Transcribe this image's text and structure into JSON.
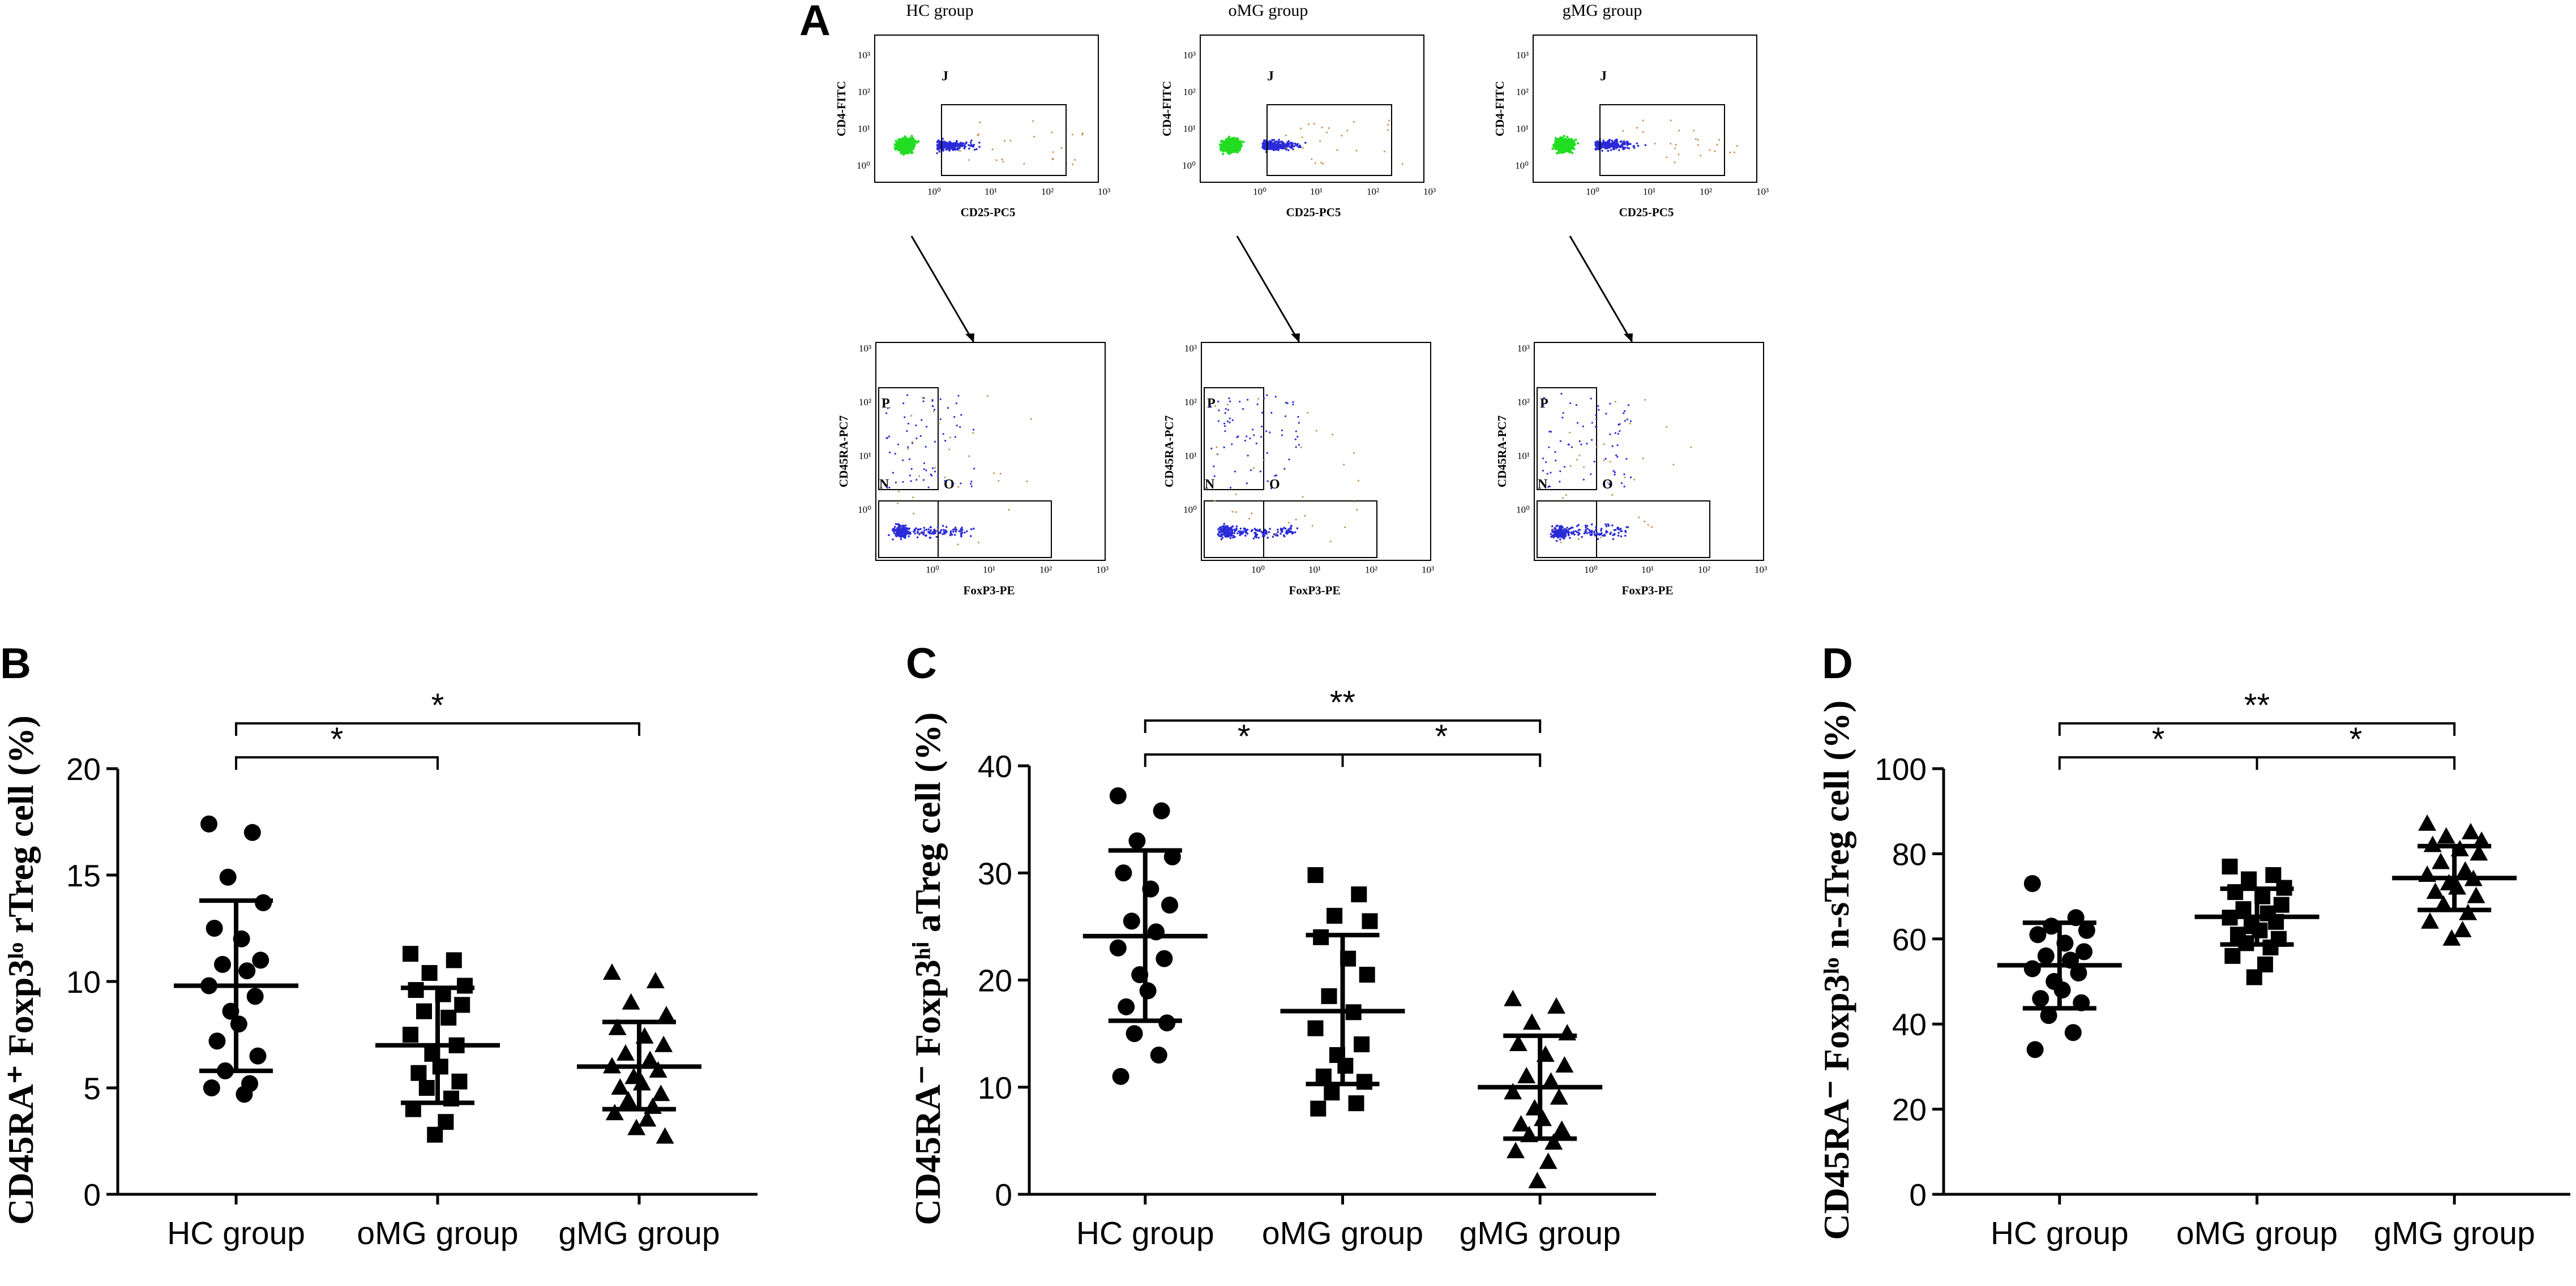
{
  "panel_a": {
    "letter": "A",
    "groups": [
      {
        "title": "HC group",
        "upper_x": "CD25-PC5",
        "upper_y": "CD4-FITC",
        "gate_j": "J",
        "lower_x": "FoxP3-PE",
        "lower_y": "CD45RA-PC7",
        "gate_p": "P",
        "gate_n": "N",
        "gate_o": "O"
      },
      {
        "title": "oMG group",
        "upper_x": "CD25-PC5",
        "upper_y": "CD4-FITC",
        "gate_j": "J",
        "lower_x": "FoxP3-PE",
        "lower_y": "CD45RA-PC7",
        "gate_p": "P",
        "gate_n": "N",
        "gate_o": "O"
      },
      {
        "title": "gMG group",
        "upper_x": "CD25-PC5",
        "upper_y": "CD4-FITC",
        "gate_j": "J",
        "lower_x": "FoxP3-PE",
        "lower_y": "CD45RA-PC7",
        "gate_p": "P",
        "gate_n": "N",
        "gate_o": "O"
      }
    ],
    "decade_labels": [
      "10⁰",
      "10¹",
      "10²",
      "10³"
    ],
    "colors": {
      "green": "#22dd22",
      "blue": "#2a2ad8",
      "orange": "#cc8844"
    }
  },
  "chart_data": [
    {
      "letter": "B",
      "type": "scatter",
      "ylabel": "CD45RA⁺ Foxp3ˡᵒ rTreg cell (%)",
      "ylim": [
        0,
        20
      ],
      "yticks": [
        "0",
        "5",
        "10",
        "15",
        "20"
      ],
      "categories": [
        "HC group",
        "oMG group",
        "gMG group"
      ],
      "markers": [
        "circle",
        "square",
        "triangle"
      ],
      "series": [
        {
          "name": "HC group",
          "mean": 9.8,
          "sd_low": 5.8,
          "sd_high": 13.8,
          "values": [
            17.4,
            17.0,
            14.9,
            13.7,
            12.5,
            12.0,
            11.0,
            10.8,
            10.5,
            9.8,
            9.3,
            8.6,
            8.0,
            7.2,
            6.5,
            5.8,
            5.2,
            5.0,
            4.7
          ]
        },
        {
          "name": "oMG group",
          "mean": 7.0,
          "sd_low": 4.3,
          "sd_high": 9.7,
          "values": [
            11.3,
            11.0,
            10.4,
            9.8,
            9.6,
            9.4,
            8.9,
            8.6,
            8.3,
            7.5,
            7.0,
            6.6,
            6.0,
            5.7,
            5.3,
            5.0,
            4.5,
            4.0,
            3.4,
            2.8
          ]
        },
        {
          "name": "gMG group",
          "mean": 6.0,
          "sd_low": 4.0,
          "sd_high": 8.1,
          "values": [
            10.4,
            10.0,
            9.0,
            8.4,
            7.8,
            7.4,
            7.0,
            6.6,
            6.3,
            6.0,
            5.8,
            5.5,
            5.2,
            5.0,
            4.7,
            4.4,
            4.1,
            3.8,
            3.5,
            3.1,
            2.7
          ]
        }
      ],
      "brackets": [
        {
          "from": 0,
          "to": 1,
          "label": "*"
        },
        {
          "from": 0,
          "to": 2,
          "label": "*"
        }
      ]
    },
    {
      "letter": "C",
      "type": "scatter",
      "ylabel": "CD45RA⁻ Foxp3ʰⁱ aTreg cell (%)",
      "ylim": [
        0,
        40
      ],
      "yticks": [
        "0",
        "10",
        "20",
        "30",
        "40"
      ],
      "categories": [
        "HC group",
        "oMG group",
        "gMG group"
      ],
      "markers": [
        "circle",
        "square",
        "triangle"
      ],
      "series": [
        {
          "name": "HC group",
          "mean": 24.1,
          "sd_low": 16.2,
          "sd_high": 32.1,
          "values": [
            37.2,
            35.8,
            33.0,
            31.5,
            30.0,
            28.5,
            27.0,
            25.5,
            24.5,
            23.0,
            22.0,
            20.5,
            19.0,
            17.5,
            16.0,
            15.0,
            13.0,
            11.0
          ]
        },
        {
          "name": "oMG group",
          "mean": 17.1,
          "sd_low": 10.3,
          "sd_high": 24.2,
          "values": [
            29.8,
            28.0,
            26.0,
            25.5,
            24.0,
            22.0,
            20.5,
            18.5,
            17.0,
            15.5,
            14.0,
            13.0,
            12.0,
            11.0,
            10.5,
            9.5,
            8.5,
            8.0
          ]
        },
        {
          "name": "gMG group",
          "mean": 10.0,
          "sd_low": 5.2,
          "sd_high": 14.8,
          "values": [
            18.2,
            17.5,
            16.0,
            15.0,
            14.0,
            13.0,
            12.0,
            11.0,
            10.5,
            9.5,
            9.0,
            8.0,
            7.0,
            6.5,
            6.0,
            5.5,
            4.8,
            4.0,
            3.0,
            1.2
          ]
        }
      ],
      "brackets": [
        {
          "from": 0,
          "to": 1,
          "label": "*"
        },
        {
          "from": 1,
          "to": 2,
          "label": "*"
        },
        {
          "from": 0,
          "to": 2,
          "label": "**"
        }
      ]
    },
    {
      "letter": "D",
      "type": "scatter",
      "ylabel": "CD45RA⁻ Foxp3ˡᵒ n-sTreg cell (%)",
      "ylim": [
        0,
        100
      ],
      "yticks": [
        "0",
        "20",
        "40",
        "60",
        "80",
        "100"
      ],
      "categories": [
        "HC group",
        "oMG group",
        "gMG group"
      ],
      "markers": [
        "circle",
        "square",
        "triangle"
      ],
      "series": [
        {
          "name": "HC group",
          "mean": 53.8,
          "sd_low": 43.7,
          "sd_high": 63.8,
          "values": [
            73.0,
            65.0,
            63.0,
            62.0,
            61.0,
            59.0,
            57.0,
            56.0,
            55.0,
            53.0,
            52.0,
            50.0,
            48.0,
            46.0,
            45.0,
            42.0,
            38.0,
            34.0
          ]
        },
        {
          "name": "oMG group",
          "mean": 65.2,
          "sd_low": 58.7,
          "sd_high": 71.8,
          "values": [
            77.0,
            75.0,
            74.0,
            72.0,
            71.0,
            70.0,
            68.0,
            67.0,
            66.0,
            65.0,
            64.0,
            63.0,
            62.0,
            61.0,
            60.0,
            59.0,
            58.0,
            56.0,
            54.0,
            51.0
          ]
        },
        {
          "name": "gMG group",
          "mean": 74.3,
          "sd_low": 66.8,
          "sd_high": 81.8,
          "values": [
            87.0,
            85.0,
            84.0,
            83.0,
            82.0,
            81.0,
            80.0,
            78.0,
            76.0,
            75.0,
            74.0,
            73.0,
            72.0,
            71.0,
            70.0,
            68.0,
            66.0,
            64.0,
            62.0,
            60.0
          ]
        }
      ],
      "brackets": [
        {
          "from": 0,
          "to": 1,
          "label": "*"
        },
        {
          "from": 1,
          "to": 2,
          "label": "*"
        },
        {
          "from": 0,
          "to": 2,
          "label": "**"
        }
      ]
    }
  ]
}
